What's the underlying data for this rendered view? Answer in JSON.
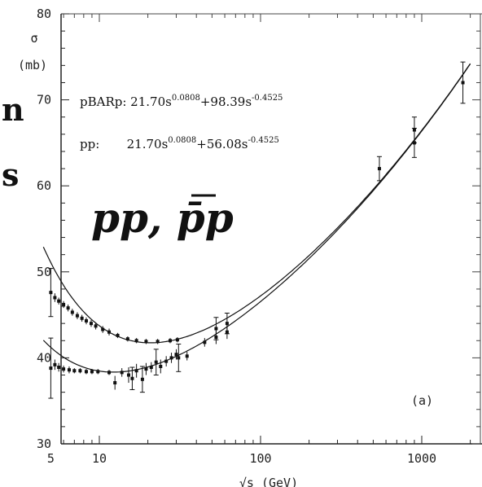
{
  "chart_data": {
    "type": "scatter",
    "x_scale": "log",
    "xlabel": "√s  (GeV)",
    "ylabel_symbol": "σ",
    "ylabel_unit": "(mb)",
    "xticks": [
      "5",
      "10",
      "100",
      "1000"
    ],
    "yticks": [
      "30",
      "40",
      "50",
      "60",
      "70",
      "80"
    ],
    "ylim": [
      30,
      80
    ],
    "xlim": [
      4.5,
      2000
    ],
    "panel_label": "(a)",
    "process_label": "pp, p̄p",
    "side_letters": [
      "n",
      "s"
    ],
    "fit_pbarp": {
      "text": "pBARp:  21.70s",
      "exp1": "0.0808",
      "mid": "+98.39s",
      "exp2": "-0.4525",
      "A": 21.7,
      "e": 0.0808,
      "B": 98.39,
      "eta": 0.4525
    },
    "fit_pp": {
      "text": "pp:       21.70s",
      "exp1": "0.0808",
      "mid": "+56.08s",
      "exp2": "-0.4525",
      "A": 21.7,
      "e": 0.0808,
      "B": 56.08,
      "eta": 0.4525
    },
    "series": [
      {
        "name": "pbarp",
        "points": [
          [
            5.0,
            47.6,
            2.8
          ],
          [
            5.3,
            47.0,
            0.5
          ],
          [
            5.6,
            46.6,
            0.4
          ],
          [
            6.0,
            46.2,
            0.4
          ],
          [
            6.4,
            45.8,
            0.4
          ],
          [
            6.8,
            45.3,
            0.4
          ],
          [
            7.3,
            44.9,
            0.4
          ],
          [
            7.8,
            44.6,
            0.4
          ],
          [
            8.3,
            44.3,
            0.4
          ],
          [
            8.9,
            44.0,
            0.4
          ],
          [
            9.5,
            43.7,
            0.4
          ],
          [
            10.5,
            43.3,
            0.4
          ],
          [
            11.5,
            43.0,
            0.4
          ],
          [
            13.0,
            42.6,
            0.3
          ],
          [
            15.0,
            42.2,
            0.3
          ],
          [
            17.0,
            42.0,
            0.3
          ],
          [
            19.5,
            41.9,
            0.3
          ],
          [
            23.0,
            41.9,
            0.3
          ],
          [
            27.5,
            42.0,
            0.3
          ],
          [
            30.5,
            42.1,
            0.3
          ],
          [
            53.0,
            43.4,
            1.3
          ],
          [
            62.0,
            44.0,
            1.2
          ],
          [
            546.0,
            62.0,
            1.4
          ],
          [
            900.0,
            66.5,
            1.5
          ],
          [
            1800.0,
            72.0,
            2.4
          ]
        ]
      },
      {
        "name": "pp",
        "points": [
          [
            5.0,
            38.8,
            3.5
          ],
          [
            5.3,
            39.2,
            0.6
          ],
          [
            5.6,
            38.9,
            0.5
          ],
          [
            6.0,
            38.7,
            0.4
          ],
          [
            6.5,
            38.6,
            0.4
          ],
          [
            7.0,
            38.5,
            0.3
          ],
          [
            7.6,
            38.5,
            0.3
          ],
          [
            8.3,
            38.4,
            0.3
          ],
          [
            9.0,
            38.4,
            0.3
          ],
          [
            9.8,
            38.4,
            0.3
          ],
          [
            11.5,
            38.3,
            0.3
          ],
          [
            12.5,
            37.1,
            0.8
          ],
          [
            13.8,
            38.3,
            0.5
          ],
          [
            15.2,
            38.0,
            0.9
          ],
          [
            16.0,
            37.6,
            1.3
          ],
          [
            17.0,
            38.5,
            0.8
          ],
          [
            18.5,
            37.5,
            1.5
          ],
          [
            19.5,
            38.7,
            0.7
          ],
          [
            21.0,
            38.9,
            0.6
          ],
          [
            22.5,
            39.5,
            1.5
          ],
          [
            24.0,
            39.0,
            0.8
          ],
          [
            26.0,
            39.6,
            0.6
          ],
          [
            28.0,
            40.0,
            0.6
          ],
          [
            30.0,
            40.4,
            0.6
          ],
          [
            31.0,
            40.0,
            1.6
          ],
          [
            35.0,
            40.2,
            0.5
          ],
          [
            45.0,
            41.8,
            0.5
          ],
          [
            53.0,
            42.4,
            0.8
          ],
          [
            62.0,
            43.0,
            0.8
          ],
          [
            900.0,
            65.0,
            1.7
          ]
        ]
      }
    ]
  }
}
